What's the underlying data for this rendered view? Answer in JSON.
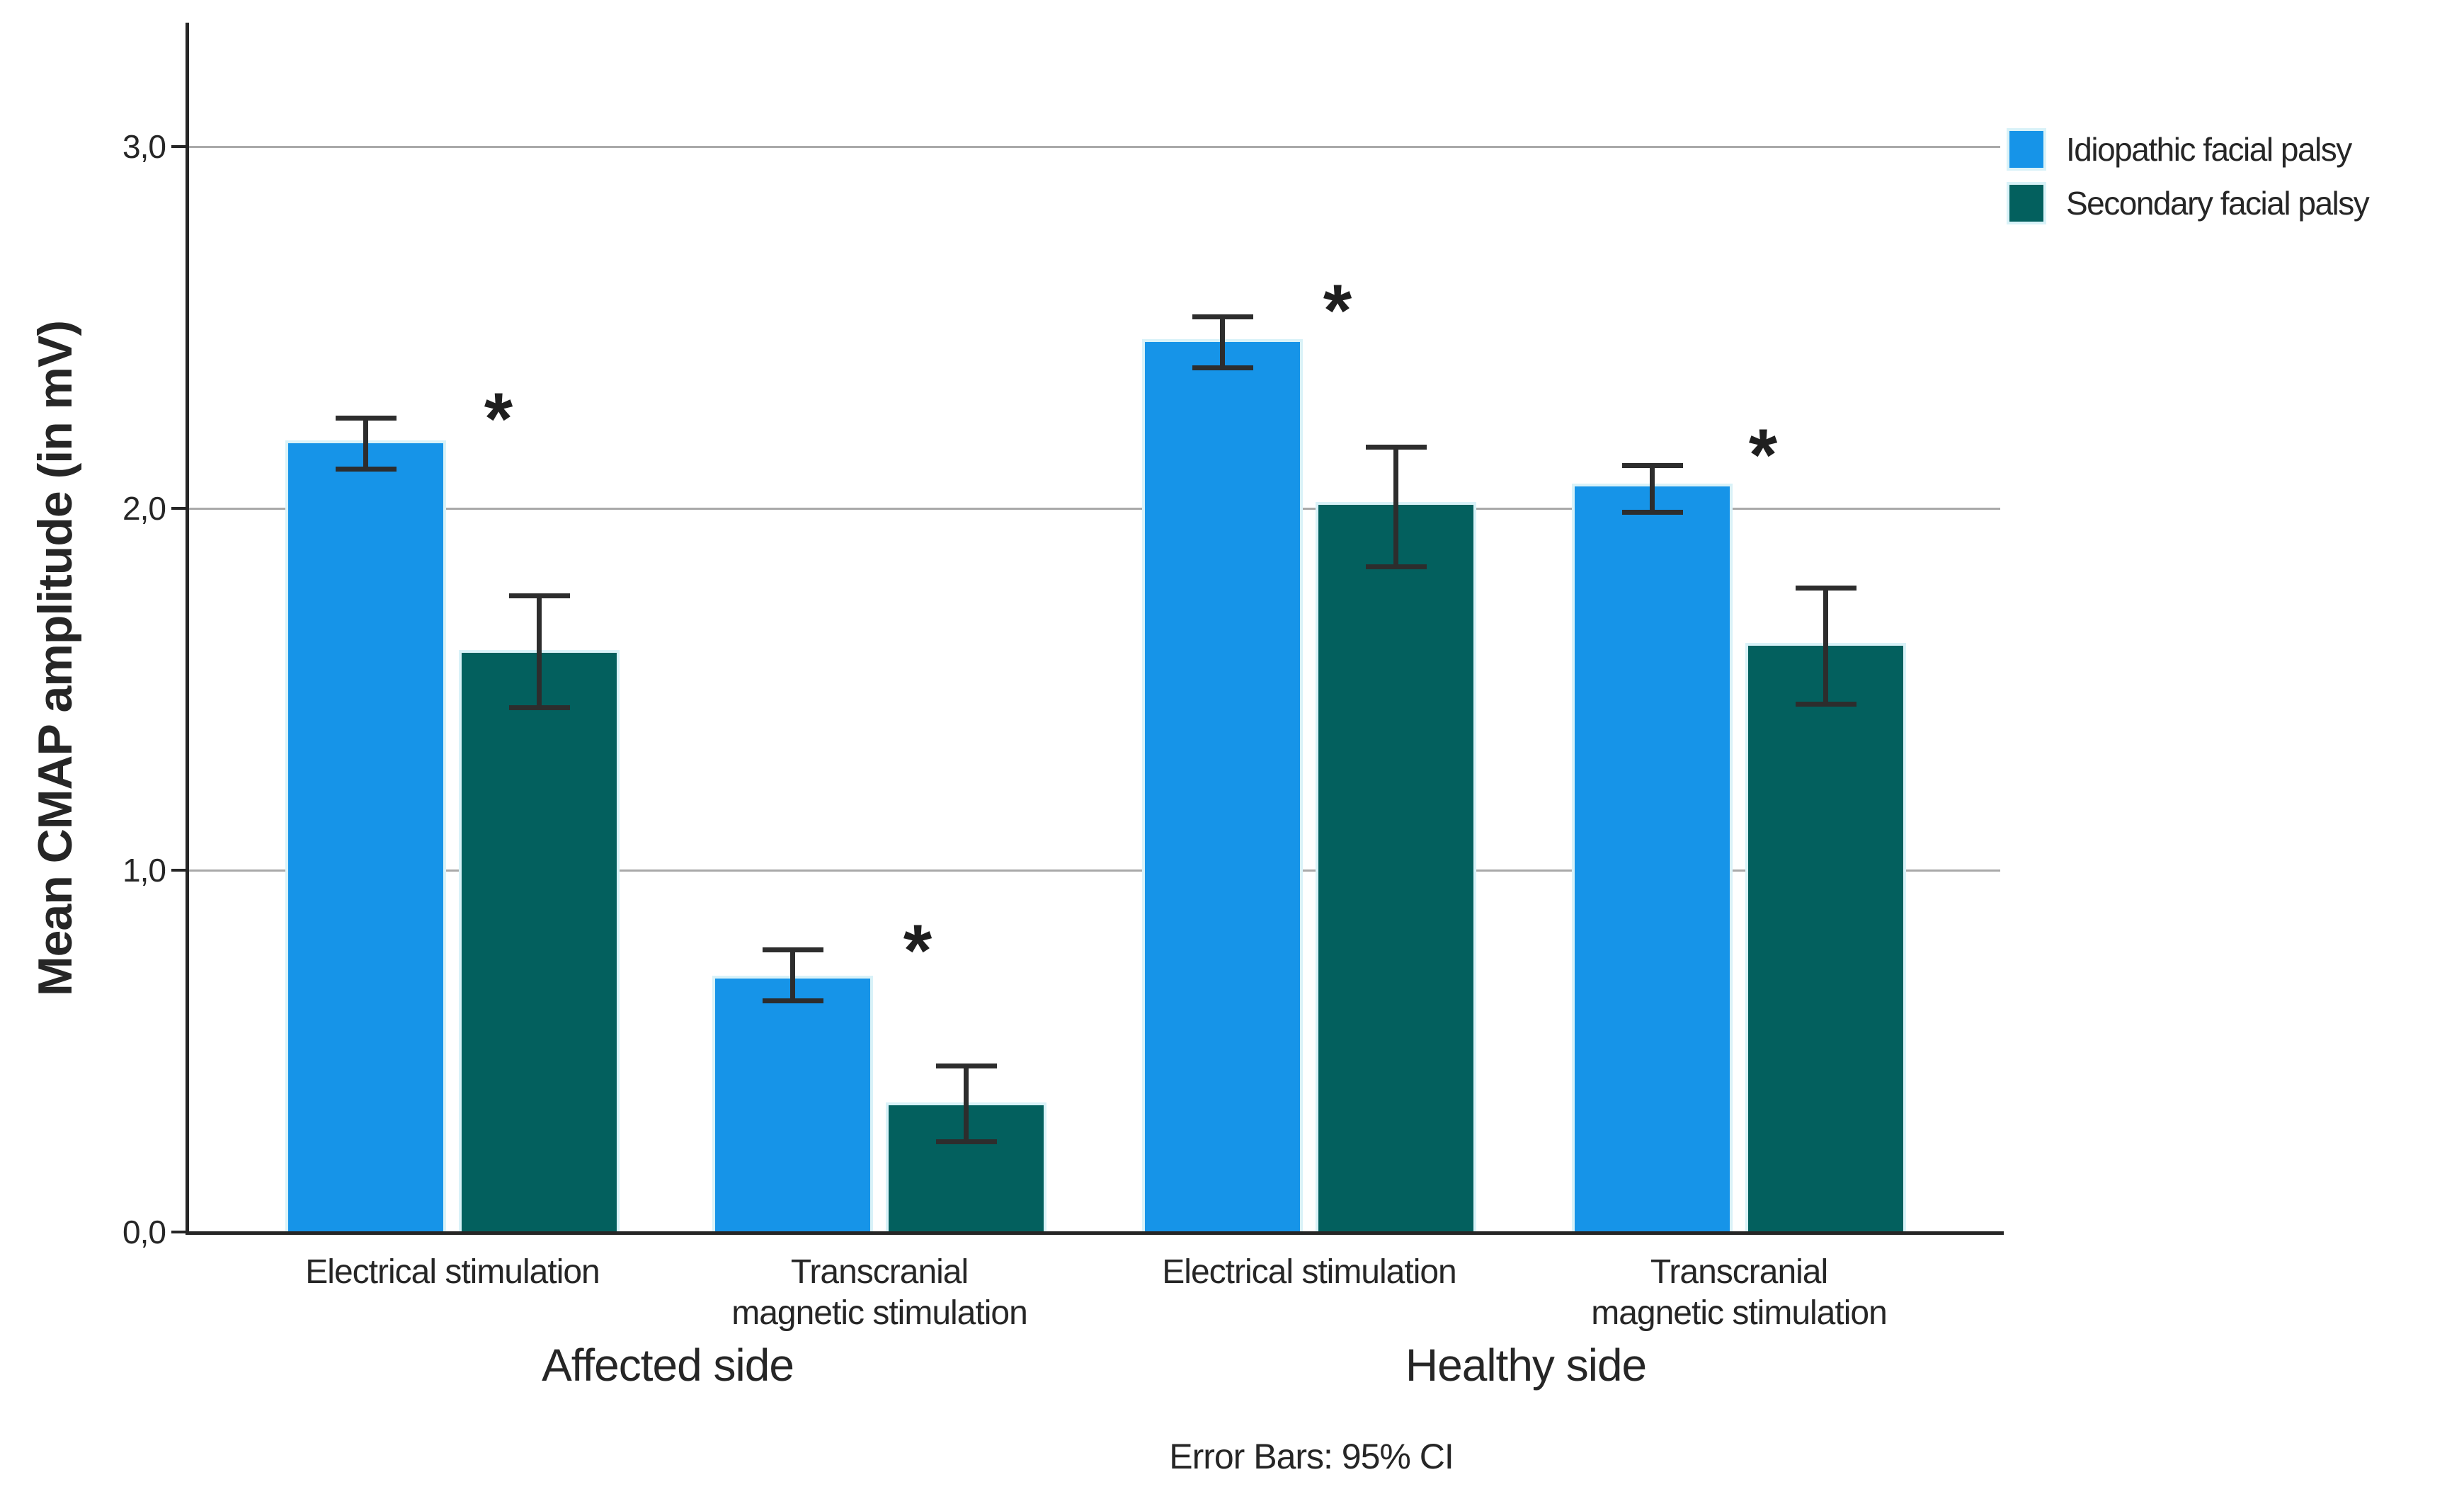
{
  "figure": {
    "background": "#ffffff",
    "footnote": "Error Bars: 95% CI"
  },
  "style_colors": {
    "axis": "#262626",
    "gridline": "#a9a9a9",
    "error_bar": "#2d2d2d",
    "text": "#262626",
    "bar_halo": "#d9f2f8",
    "background": "#ffffff"
  },
  "chart_data": {
    "type": "bar",
    "title": "",
    "ylabel": "Mean CMAP amplitude (in mV)",
    "xlabel": "",
    "ylim": [
      0,
      3.34
    ],
    "yticks": [
      0,
      1,
      2,
      3
    ],
    "ytick_labels": [
      "0,0",
      "1,0",
      "2,0",
      "3,0"
    ],
    "grid": true,
    "legend_position": "top-right",
    "error_bar_note": "Error Bars: 95% CI",
    "sections": [
      {
        "label": "Affected side"
      },
      {
        "label": "Healthy side"
      }
    ],
    "groups": [
      {
        "section": "Affected side",
        "category": "Electrical stimulation",
        "category_lines": [
          "Electrical stimulation"
        ],
        "significant": true,
        "sig_label": "*",
        "sig_y": 2.29
      },
      {
        "section": "Affected side",
        "category": "Transcranial magnetic stimulation",
        "category_lines": [
          "Transcranial",
          "magnetic stimulation"
        ],
        "significant": true,
        "sig_label": "*",
        "sig_y": 0.82
      },
      {
        "section": "Healthy side",
        "category": "Electrical stimulation",
        "category_lines": [
          "Electrical stimulation"
        ],
        "significant": true,
        "sig_label": "*",
        "sig_y": 2.59
      },
      {
        "section": "Healthy side",
        "category": "Transcranial magnetic stimulation",
        "category_lines": [
          "Transcranial",
          "magnetic stimulation"
        ],
        "significant": true,
        "sig_label": "*",
        "sig_y": 2.19
      }
    ],
    "series": [
      {
        "name": "Idiopathic facial palsy",
        "color": "#1694e8",
        "values": [
          2.18,
          0.7,
          2.46,
          2.06
        ],
        "ci_low": [
          2.11,
          0.64,
          2.39,
          1.99
        ],
        "ci_high": [
          2.25,
          0.78,
          2.53,
          2.12
        ]
      },
      {
        "name": "Secondary facial palsy",
        "color": "#03605e",
        "values": [
          1.6,
          0.35,
          2.01,
          1.62
        ],
        "ci_low": [
          1.45,
          0.25,
          1.84,
          1.46
        ],
        "ci_high": [
          1.76,
          0.46,
          2.17,
          1.78
        ]
      }
    ]
  }
}
